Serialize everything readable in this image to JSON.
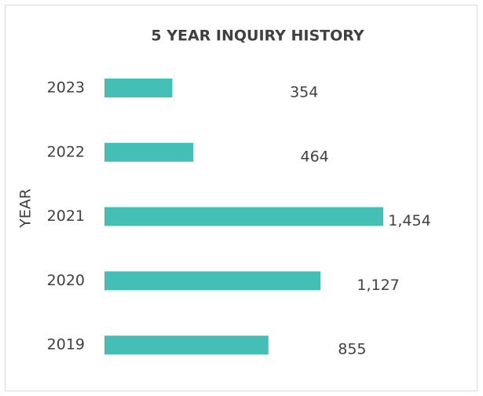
{
  "chart_data": {
    "type": "bar",
    "orientation": "horizontal",
    "title": "5 YEAR INQUIRY HISTORY",
    "y_label": "YEAR",
    "categories": [
      "2023",
      "2022",
      "2021",
      "2020",
      "2019"
    ],
    "values": [
      354,
      464,
      1454,
      1127,
      855
    ],
    "value_labels": [
      "354",
      "464",
      "1,454",
      "1,127",
      "855"
    ],
    "color": "#43bfb5"
  }
}
